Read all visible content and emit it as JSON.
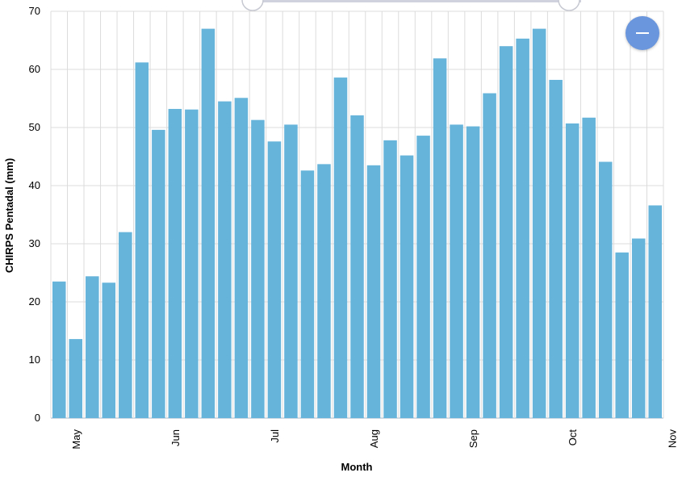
{
  "chart_data": {
    "type": "bar",
    "xlabel": "Month",
    "ylabel": "CHIRPS Pentadal (mm)",
    "ylim": [
      0,
      70
    ],
    "yticks": [
      0,
      10,
      20,
      30,
      40,
      50,
      60,
      70
    ],
    "grid": true,
    "bar_color": "#67b4db",
    "month_labels": [
      "May",
      "Jun",
      "Jul",
      "Aug",
      "Sep",
      "Oct",
      "Nov"
    ],
    "values": [
      23.5,
      13.6,
      24.4,
      23.3,
      32.0,
      61.2,
      49.6,
      53.2,
      53.1,
      67.0,
      54.5,
      55.1,
      51.3,
      47.6,
      50.5,
      42.6,
      43.7,
      58.6,
      52.1,
      43.5,
      47.8,
      45.2,
      48.6,
      61.9,
      50.5,
      50.2,
      55.9,
      64.0,
      65.3,
      67.0,
      58.2,
      50.7,
      51.7,
      44.1,
      28.5,
      30.9,
      36.6
    ]
  },
  "controls": {
    "zoom_out_icon": "minus-icon",
    "range_slider": "range-slider"
  },
  "colors": {
    "accent": "#6a96dd",
    "slider_track": "#d0d3de",
    "grid": "#dcdcdc"
  }
}
